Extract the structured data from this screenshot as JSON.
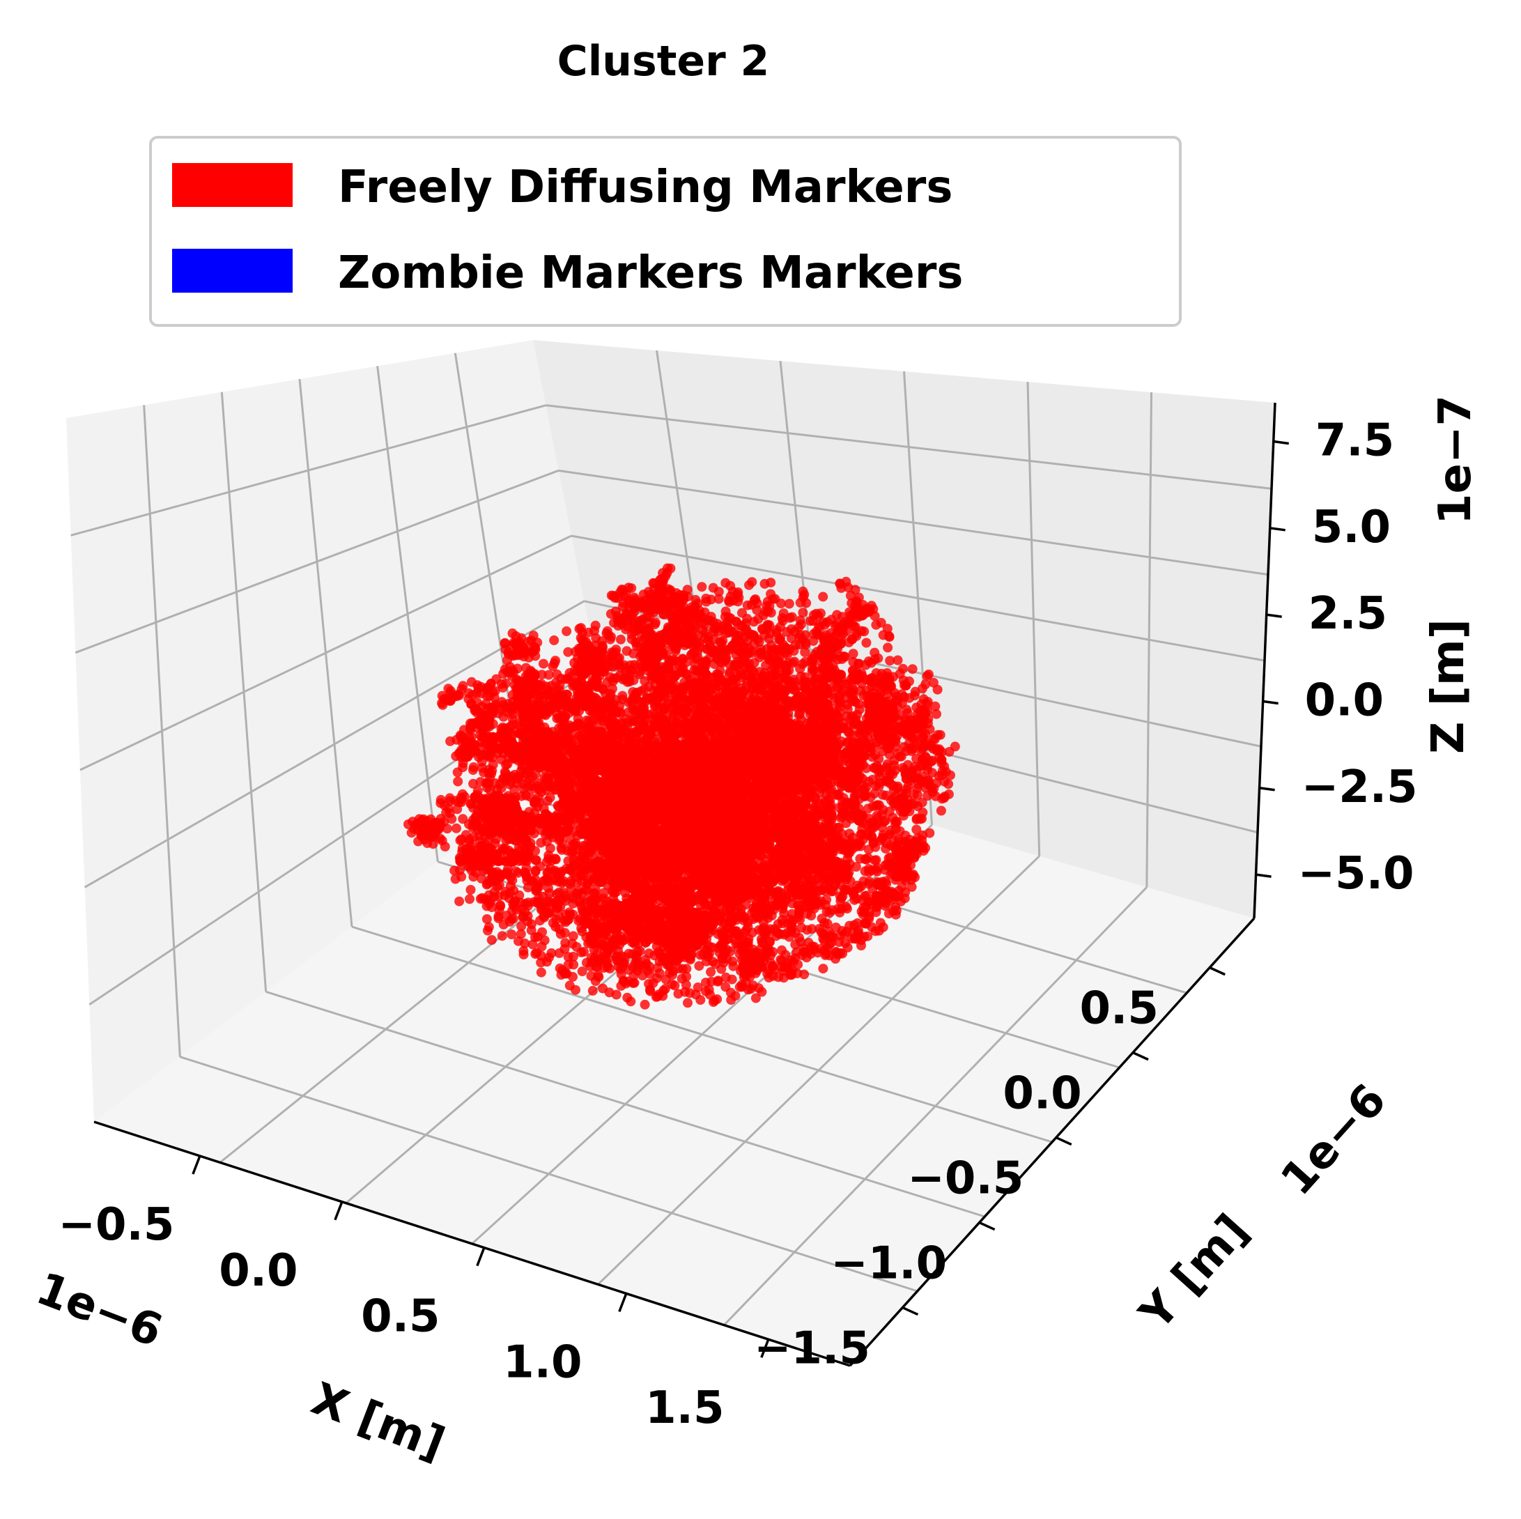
{
  "chart_data": {
    "type": "scatter",
    "title": "Cluster 2",
    "xlabel": "X [m]",
    "ylabel": "Y [m]",
    "zlabel": "Z [m]",
    "x_offset_label": "1e−6",
    "y_offset_label": "1e−6",
    "z_offset_label": "1e−7",
    "x_ticks": [
      "−0.5",
      "0.0",
      "0.5",
      "1.0",
      "1.5"
    ],
    "y_ticks": [
      "−1.5",
      "−1.0",
      "−0.5",
      "0.0",
      "0.5"
    ],
    "z_ticks": [
      "−5.0",
      "−2.5",
      "0.0",
      "2.5",
      "5.0",
      "7.5"
    ],
    "xlim": [
      -9e-07,
      1.9e-06
    ],
    "ylim": [
      -1.8e-06,
      8e-07
    ],
    "zlim": [
      -6.5e-07,
      8.5e-07
    ],
    "grid": true,
    "legend_position": "top-center",
    "series": [
      {
        "name": "Freely Diffusing Markers",
        "color": "#ff0000",
        "center": [
          5e-07,
          -5e-07,
          5e-08
        ],
        "approx_extent": [
          [
            -7e-07,
            1.6e-06
          ],
          [
            -1.6e-06,
            6e-07
          ],
          [
            -5.5e-07,
            8e-07
          ]
        ],
        "note_count": "dense random-walk cloud (thousands of points)"
      },
      {
        "name": "Zombie Markers Markers",
        "color": "#0000ff",
        "note_count": "no visible points"
      }
    ]
  }
}
